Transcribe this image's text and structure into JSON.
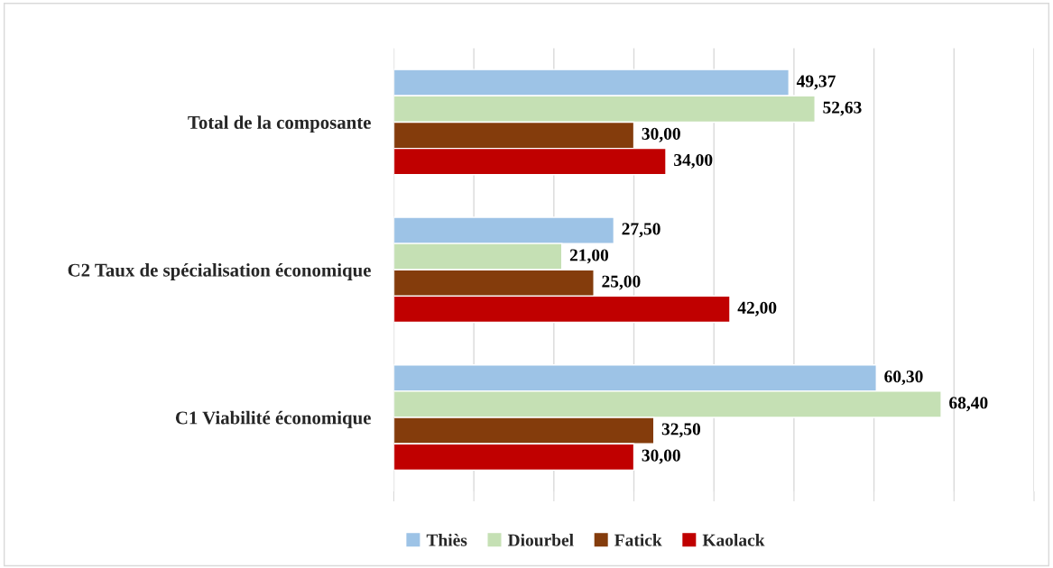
{
  "chart_data": {
    "type": "bar",
    "orientation": "horizontal",
    "categories": [
      "Total de la composante",
      "C2 Taux de spécialisation économique",
      "C1 Viabilité économique"
    ],
    "series": [
      {
        "name": "Thiès",
        "color": "#9dc3e6",
        "values": [
          49.37,
          27.5,
          60.3
        ],
        "value_labels": [
          "49,37",
          "27,50",
          "60,30"
        ]
      },
      {
        "name": "Diourbel",
        "color": "#c5e0b4",
        "values": [
          52.63,
          21.0,
          68.4
        ],
        "value_labels": [
          "52,63",
          "21,00",
          "68,40"
        ]
      },
      {
        "name": "Fatick",
        "color": "#843c0c",
        "values": [
          30.0,
          25.0,
          32.5
        ],
        "value_labels": [
          "30,00",
          "25,00",
          "32,50"
        ]
      },
      {
        "name": "Kaolack",
        "color": "#c00000",
        "values": [
          34.0,
          42.0,
          30.0
        ],
        "value_labels": [
          "34,00",
          "42,00",
          "30,00"
        ]
      }
    ],
    "xlim": [
      0,
      80
    ],
    "xticks": [
      {
        "value": 0,
        "label": null
      },
      {
        "value": 10,
        "label": null
      },
      {
        "value": 20,
        "label": null
      },
      {
        "value": 30,
        "label": null
      },
      {
        "value": 40,
        "label": null
      },
      {
        "value": 50,
        "label": null
      },
      {
        "value": 60,
        "label": null
      },
      {
        "value": 70,
        "label": null
      },
      {
        "value": 80,
        "label": null
      }
    ],
    "tick_labels": "y",
    "grid": "x",
    "legend": "bottom"
  }
}
